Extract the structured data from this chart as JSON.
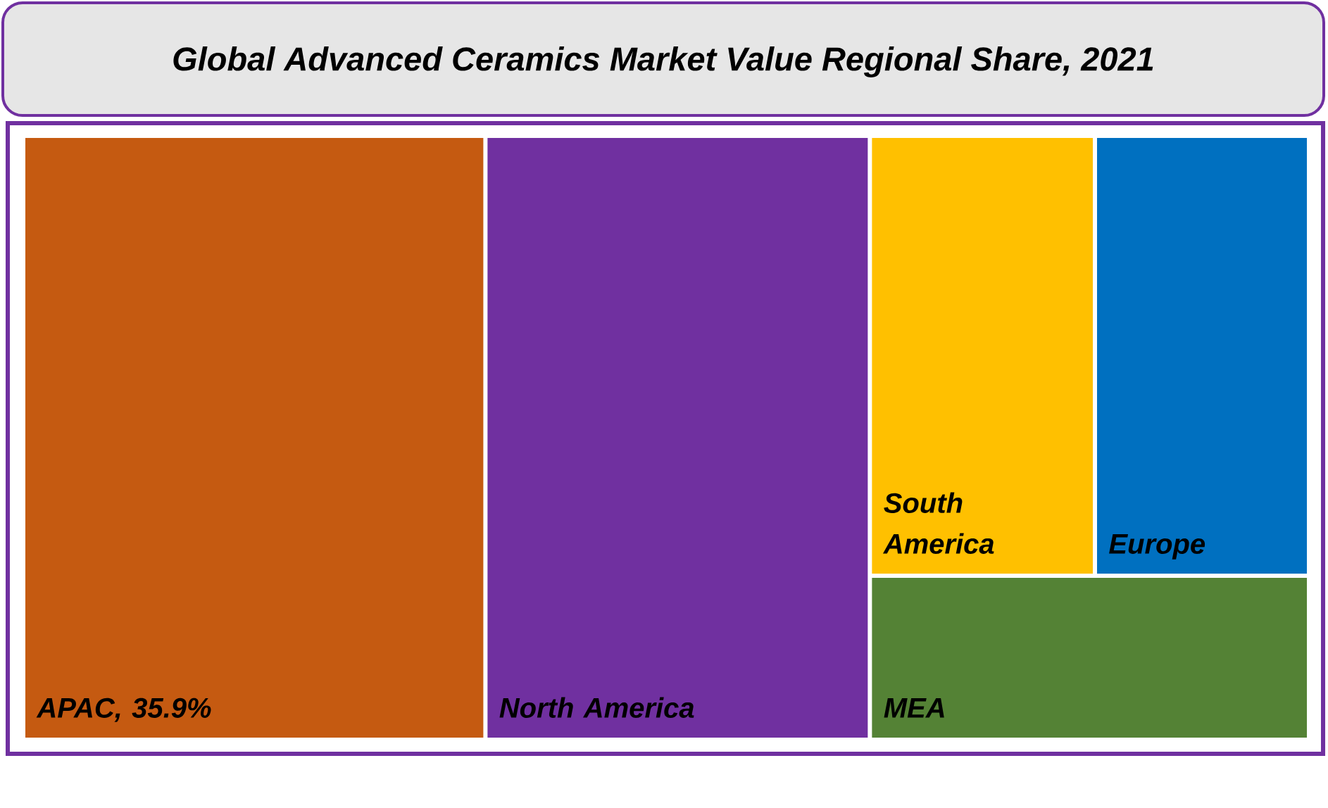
{
  "chart_data": {
    "type": "other",
    "title": "Global Advanced Ceramics Market Value Regional Share, 2021",
    "categories": [
      "APAC",
      "North America",
      "South America",
      "Europe",
      "MEA"
    ],
    "values": [
      35.9,
      null,
      null,
      null,
      null
    ],
    "value_labels": [
      ", 35.9%",
      null,
      null,
      null,
      null
    ],
    "colors": [
      "#c55a11",
      "#7030a0",
      "#ffc000",
      "#0070c0",
      "#548235"
    ]
  }
}
